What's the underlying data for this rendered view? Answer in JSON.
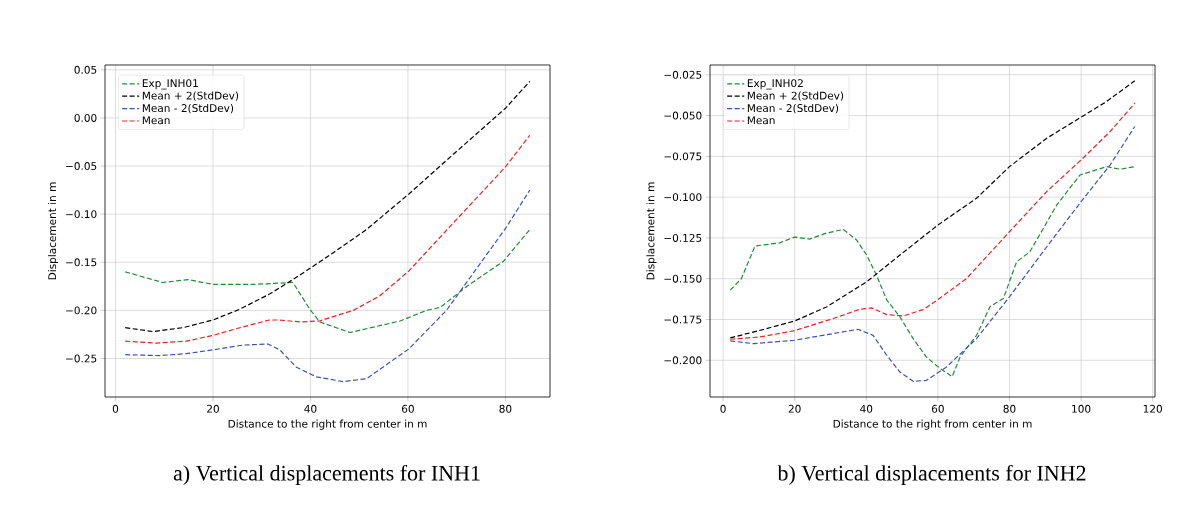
{
  "chart_data": [
    {
      "type": "line",
      "title": "a) Vertical displacements for INH1",
      "xlabel": "Distance to the right from center in m",
      "ylabel": "Displacement in m",
      "xlim": [
        -2.15,
        89.15
      ],
      "ylim": [
        -0.29,
        0.055
      ],
      "xticks": [
        0,
        20,
        40,
        60,
        80
      ],
      "yticks": [
        {
          "value": -0.25,
          "label": "−0.25"
        },
        {
          "value": -0.2,
          "label": "−0.20"
        },
        {
          "value": -0.15,
          "label": "−0.15"
        },
        {
          "value": -0.1,
          "label": "−0.10"
        },
        {
          "value": -0.05,
          "label": "−0.05"
        },
        {
          "value": 0,
          "label": "0.00"
        },
        {
          "value": 0.05,
          "label": "0.05"
        }
      ],
      "grid": true,
      "legend": "top left",
      "line_style": "dashed",
      "series": [
        {
          "name": "Exp_INH01",
          "color": "#228b3b",
          "x": [
            2,
            9.7,
            14.9,
            20,
            28.2,
            36.4,
            39.9,
            41.9,
            48.1,
            58.4,
            63.8,
            66.6,
            72.1,
            79.6,
            85
          ],
          "values": [
            -0.16,
            -0.171,
            -0.168,
            -0.173,
            -0.173,
            -0.171,
            -0.199,
            -0.212,
            -0.223,
            -0.211,
            -0.2,
            -0.197,
            -0.175,
            -0.149,
            -0.116
          ]
        },
        {
          "name": "Mean + 2(StdDev)",
          "color": "#000000",
          "x": [
            2,
            7.7,
            13.8,
            20,
            25.4,
            31.6,
            36.4,
            40,
            44.7,
            51.5,
            60.2,
            68.6,
            80,
            85
          ],
          "values": [
            -0.218,
            -0.222,
            -0.218,
            -0.21,
            -0.199,
            -0.183,
            -0.168,
            -0.156,
            -0.14,
            -0.116,
            -0.079,
            -0.041,
            0.01,
            0.038
          ]
        },
        {
          "name": "Mean - 2(StdDev)",
          "color": "#3f51b5",
          "x": [
            2,
            9,
            14.5,
            20,
            26.2,
            31.3,
            33.7,
            37.1,
            41.2,
            46.7,
            51.5,
            60.2,
            67.9,
            80,
            85
          ],
          "values": [
            -0.246,
            -0.247,
            -0.245,
            -0.241,
            -0.236,
            -0.235,
            -0.241,
            -0.259,
            -0.269,
            -0.274,
            -0.271,
            -0.24,
            -0.2,
            -0.115,
            -0.075
          ]
        },
        {
          "name": "Mean",
          "color": "#ee2222",
          "x": [
            2,
            8.3,
            14.5,
            20,
            25.5,
            31.6,
            33.7,
            37.8,
            41.9,
            48.8,
            54.2,
            60.2,
            68.6,
            80,
            85
          ],
          "values": [
            -0.232,
            -0.234,
            -0.232,
            -0.226,
            -0.218,
            -0.21,
            -0.21,
            -0.212,
            -0.211,
            -0.2,
            -0.185,
            -0.159,
            -0.113,
            -0.051,
            -0.018
          ]
        }
      ]
    },
    {
      "type": "line",
      "title": "b) Vertical displacements for INH2",
      "xlabel": "Distance to the right from center in m",
      "ylabel": "Displacement in m",
      "xlim": [
        -3.65,
        120.65
      ],
      "ylim": [
        -0.2225,
        -0.019
      ],
      "xticks": [
        0,
        20,
        40,
        60,
        80,
        100,
        120
      ],
      "yticks": [
        {
          "value": -0.2,
          "label": "−0.200"
        },
        {
          "value": -0.175,
          "label": "−0.175"
        },
        {
          "value": -0.15,
          "label": "−0.150"
        },
        {
          "value": -0.125,
          "label": "−0.125"
        },
        {
          "value": -0.1,
          "label": "−0.100"
        },
        {
          "value": -0.075,
          "label": "−0.075"
        },
        {
          "value": -0.05,
          "label": "−0.050"
        },
        {
          "value": -0.025,
          "label": "−0.025"
        }
      ],
      "grid": true,
      "legend": "top left",
      "line_style": "dashed",
      "series": [
        {
          "name": "Exp_INH02",
          "color": "#228b3b",
          "x": [
            2,
            5.1,
            8.9,
            15.8,
            20,
            24.2,
            28.9,
            33.6,
            37.3,
            40.1,
            42.9,
            45.7,
            49.4,
            53.1,
            56.8,
            60.6,
            64,
            66.2,
            70.8,
            74.6,
            78.3,
            82,
            85.7,
            93.2,
            99.7,
            107.2,
            110.9,
            115
          ],
          "values": [
            -0.157,
            -0.15,
            -0.13,
            -0.128,
            -0.1245,
            -0.1257,
            -0.122,
            -0.1198,
            -0.1263,
            -0.1355,
            -0.148,
            -0.163,
            -0.1734,
            -0.1867,
            -0.198,
            -0.205,
            -0.21,
            -0.198,
            -0.1847,
            -0.167,
            -0.1621,
            -0.1396,
            -0.1335,
            -0.1048,
            -0.0864,
            -0.0813,
            -0.0829,
            -0.0813
          ]
        },
        {
          "name": "Mean + 2(StdDev)",
          "color": "#000000",
          "x": [
            2,
            12.1,
            20,
            28.9,
            40.1,
            49.4,
            60,
            70.8,
            80,
            90.4,
            100,
            107.1,
            115
          ],
          "values": [
            -0.1863,
            -0.1806,
            -0.1759,
            -0.1673,
            -0.1519,
            -0.1355,
            -0.1171,
            -0.1007,
            -0.0813,
            -0.0639,
            -0.051,
            -0.0414,
            -0.0287
          ]
        },
        {
          "name": "Mean - 2(StdDev)",
          "color": "#3f51b5",
          "x": [
            2,
            8.4,
            20,
            30.8,
            37.7,
            41.9,
            45.7,
            49.4,
            53.1,
            56.8,
            62.4,
            70.8,
            80,
            90.4,
            100,
            108.1,
            115
          ],
          "values": [
            -0.1881,
            -0.1898,
            -0.1877,
            -0.1836,
            -0.181,
            -0.1847,
            -0.1969,
            -0.2072,
            -0.2129,
            -0.2123,
            -0.2041,
            -0.1867,
            -0.1611,
            -0.1304,
            -0.1028,
            -0.0803,
            -0.0567
          ]
        },
        {
          "name": "Mean",
          "color": "#ee2222",
          "x": [
            2,
            10.3,
            20,
            30.8,
            38.2,
            41.5,
            45.7,
            50.3,
            55.9,
            60,
            68,
            80,
            90.4,
            100,
            108.1,
            115
          ],
          "values": [
            -0.1871,
            -0.1857,
            -0.1818,
            -0.1744,
            -0.1687,
            -0.1679,
            -0.172,
            -0.1728,
            -0.1689,
            -0.1628,
            -0.1499,
            -0.1212,
            -0.0966,
            -0.0772,
            -0.0598,
            -0.0424
          ]
        }
      ]
    }
  ]
}
